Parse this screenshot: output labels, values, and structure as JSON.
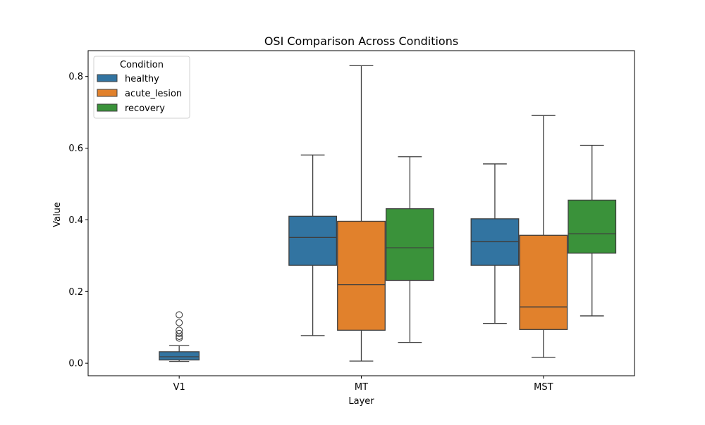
{
  "chart_data": {
    "type": "boxplot",
    "title": "OSI Comparison Across Conditions",
    "xlabel": "Layer",
    "ylabel": "Value",
    "categories": [
      "V1",
      "MT",
      "MST"
    ],
    "ylim": [
      -0.035,
      0.872
    ],
    "yticks": [
      0.0,
      0.2,
      0.4,
      0.6,
      0.8
    ],
    "ytick_labels": [
      "0.0",
      "0.2",
      "0.4",
      "0.6",
      "0.8"
    ],
    "grid": false,
    "legend": {
      "title": "Condition",
      "placement": "top-left"
    },
    "series": [
      {
        "name": "healthy",
        "color": "#3274a1",
        "boxes": [
          {
            "category": "V1",
            "whisker_low": 0.005,
            "q1": 0.009,
            "median": 0.018,
            "q3": 0.032,
            "whisker_high": 0.049,
            "outliers": [
              0.07,
              0.075,
              0.083,
              0.092,
              0.113,
              0.135
            ]
          },
          {
            "category": "MT",
            "whisker_low": 0.077,
            "q1": 0.273,
            "median": 0.351,
            "q3": 0.41,
            "whisker_high": 0.581,
            "outliers": []
          },
          {
            "category": "MST",
            "whisker_low": 0.111,
            "q1": 0.273,
            "median": 0.339,
            "q3": 0.403,
            "whisker_high": 0.556,
            "outliers": []
          }
        ]
      },
      {
        "name": "acute_lesion",
        "color": "#e1812c",
        "boxes": [
          {
            "category": "MT",
            "whisker_low": 0.006,
            "q1": 0.092,
            "median": 0.219,
            "q3": 0.396,
            "whisker_high": 0.83,
            "outliers": []
          },
          {
            "category": "MST",
            "whisker_low": 0.016,
            "q1": 0.094,
            "median": 0.157,
            "q3": 0.357,
            "whisker_high": 0.691,
            "outliers": []
          }
        ]
      },
      {
        "name": "recovery",
        "color": "#3a923a",
        "boxes": [
          {
            "category": "MT",
            "whisker_low": 0.058,
            "q1": 0.231,
            "median": 0.322,
            "q3": 0.431,
            "whisker_high": 0.576,
            "outliers": []
          },
          {
            "category": "MST",
            "whisker_low": 0.132,
            "q1": 0.307,
            "median": 0.361,
            "q3": 0.455,
            "whisker_high": 0.608,
            "outliers": []
          }
        ]
      }
    ]
  }
}
